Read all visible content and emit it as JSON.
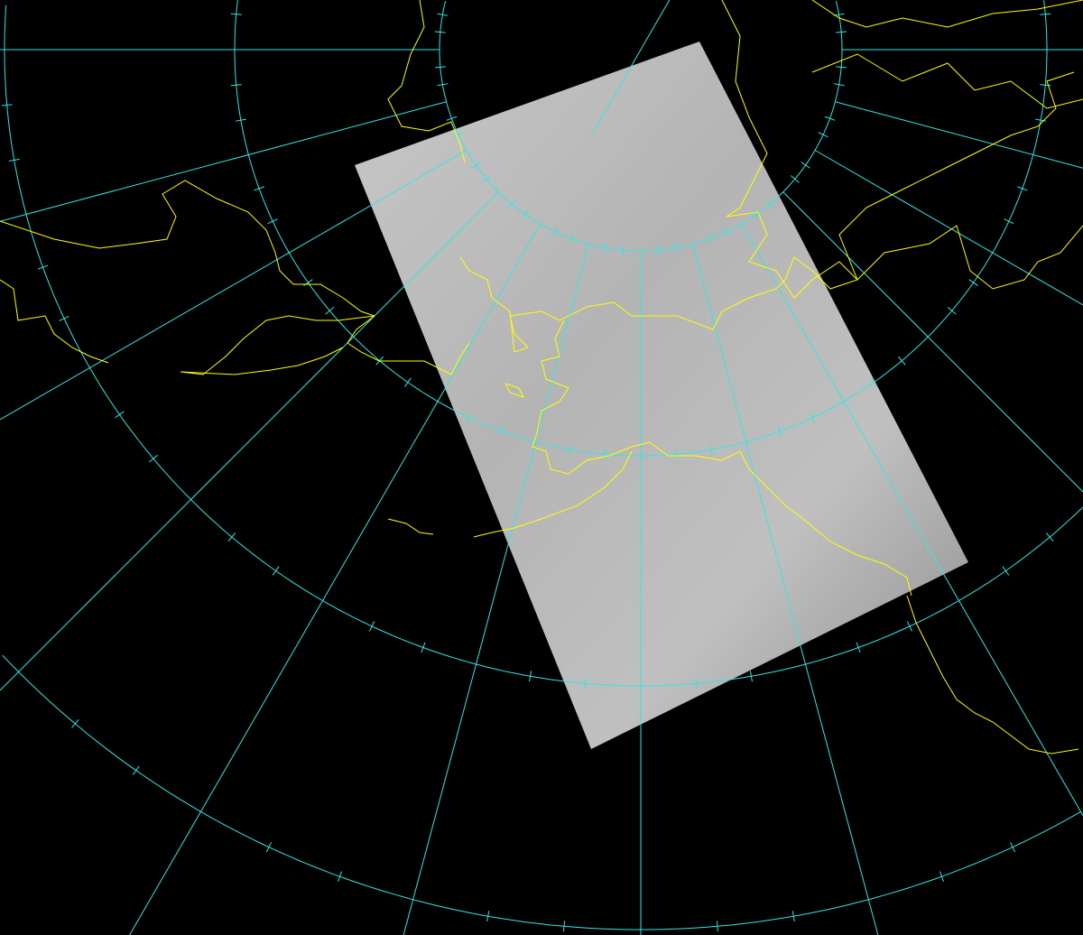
{
  "map": {
    "background_color": "#000000",
    "graticule_color": "#33e6e6",
    "coastline_color": "#ffff00",
    "meridian_spacing_deg": 15,
    "satellite_image": {
      "tone": "grayscale"
    }
  }
}
